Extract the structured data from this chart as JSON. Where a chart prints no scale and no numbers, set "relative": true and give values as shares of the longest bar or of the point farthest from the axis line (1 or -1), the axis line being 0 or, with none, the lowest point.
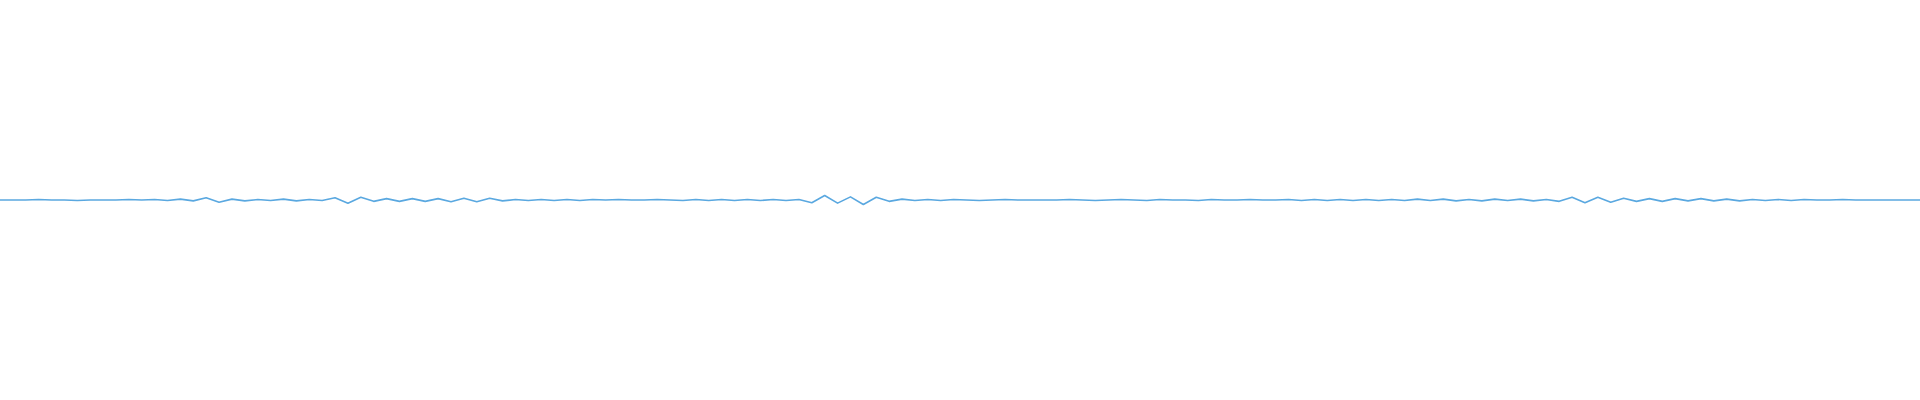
{
  "chart_data": {
    "type": "line",
    "relative": true,
    "categories": [
      null,
      null,
      null,
      null,
      null,
      null,
      null,
      null,
      null,
      null,
      null,
      null,
      null,
      null,
      null,
      null,
      null,
      null,
      null,
      null,
      null,
      null,
      null,
      null,
      null,
      null,
      null,
      null,
      null,
      null,
      null,
      null,
      null,
      null,
      null,
      null,
      null,
      null,
      null,
      null,
      null,
      null,
      null,
      null,
      null,
      null,
      null,
      null,
      null,
      null,
      null,
      null,
      null,
      null,
      null,
      null,
      null,
      null,
      null,
      null,
      null,
      null,
      null,
      null,
      null,
      null,
      null,
      null,
      null,
      null,
      null,
      null,
      null,
      null,
      null,
      null,
      null,
      null,
      null,
      null,
      null,
      null,
      null,
      null,
      null,
      null,
      null,
      null,
      null,
      null,
      null,
      null,
      null,
      null,
      null,
      null,
      null,
      null,
      null,
      null,
      null,
      null,
      null,
      null,
      null,
      null,
      null,
      null,
      null,
      null,
      null,
      null,
      null,
      null,
      null,
      null,
      null,
      null,
      null,
      null,
      null,
      null,
      null,
      null,
      null,
      null,
      null,
      null,
      null,
      null,
      null,
      null,
      null,
      null,
      null,
      null,
      null,
      null,
      null,
      null,
      null,
      null,
      null,
      null,
      null,
      null,
      null,
      null,
      null,
      null
    ],
    "color": "#5aa8e0",
    "values": [
      0.5,
      0.5,
      0.5,
      0.55,
      0.5,
      0.5,
      0.45,
      0.5,
      0.5,
      0.5,
      0.55,
      0.5,
      0.55,
      0.45,
      0.6,
      0.4,
      0.75,
      0.25,
      0.6,
      0.4,
      0.55,
      0.45,
      0.6,
      0.4,
      0.55,
      0.45,
      0.75,
      0.15,
      0.8,
      0.35,
      0.65,
      0.35,
      0.65,
      0.35,
      0.65,
      0.3,
      0.7,
      0.3,
      0.7,
      0.4,
      0.55,
      0.45,
      0.55,
      0.45,
      0.55,
      0.45,
      0.55,
      0.5,
      0.55,
      0.5,
      0.5,
      0.55,
      0.5,
      0.45,
      0.55,
      0.45,
      0.55,
      0.45,
      0.55,
      0.45,
      0.55,
      0.45,
      0.55,
      0.2,
      1,
      0.15,
      0.85,
      0,
      0.8,
      0.35,
      0.6,
      0.45,
      0.55,
      0.45,
      0.55,
      0.5,
      0.45,
      0.5,
      0.55,
      0.5,
      0.5,
      0.5,
      0.5,
      0.55,
      0.5,
      0.45,
      0.5,
      0.55,
      0.5,
      0.45,
      0.55,
      0.5,
      0.5,
      0.45,
      0.55,
      0.5,
      0.5,
      0.55,
      0.5,
      0.5,
      0.55,
      0.45,
      0.55,
      0.45,
      0.55,
      0.45,
      0.55,
      0.45,
      0.55,
      0.45,
      0.6,
      0.45,
      0.6,
      0.4,
      0.55,
      0.4,
      0.6,
      0.45,
      0.6,
      0.4,
      0.55,
      0.35,
      0.8,
      0.2,
      0.8,
      0.25,
      0.7,
      0.35,
      0.65,
      0.35,
      0.65,
      0.4,
      0.65,
      0.4,
      0.6,
      0.4,
      0.55,
      0.45,
      0.55,
      0.45,
      0.55,
      0.5,
      0.5,
      0.55,
      0.5,
      0.5,
      0.5,
      0.5,
      0.5,
      0.5
    ]
  }
}
